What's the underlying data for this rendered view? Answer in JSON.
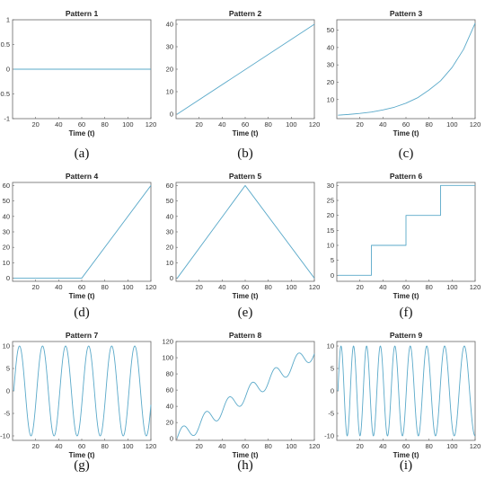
{
  "chart_data": [
    {
      "label": "(a)",
      "type": "line",
      "title": "Pattern 1",
      "xlabel": "Time (t)",
      "xlim": [
        0,
        120
      ],
      "ylim": [
        -1,
        1
      ],
      "xticks": [
        20,
        40,
        60,
        80,
        100,
        120
      ],
      "yticks": [
        -1,
        -0.5,
        0,
        0.5,
        1
      ],
      "series": [
        {
          "x": [
            1,
            120
          ],
          "y": [
            0,
            0
          ]
        }
      ]
    },
    {
      "label": "(b)",
      "type": "line",
      "title": "Pattern 2",
      "xlabel": "Time (t)",
      "xlim": [
        0,
        120
      ],
      "ylim": [
        -2,
        42
      ],
      "xticks": [
        20,
        40,
        60,
        80,
        100,
        120
      ],
      "yticks": [
        0,
        10,
        20,
        30,
        40
      ],
      "series": [
        {
          "x": [
            1,
            120
          ],
          "y": [
            0,
            40
          ]
        }
      ]
    },
    {
      "label": "(c)",
      "type": "line",
      "title": "Pattern 3",
      "xlabel": "Time (t)",
      "xlim": [
        0,
        120
      ],
      "ylim": [
        -1,
        56
      ],
      "xticks": [
        20,
        40,
        60,
        80,
        100,
        120
      ],
      "yticks": [
        10,
        20,
        30,
        40,
        50
      ],
      "series": [
        {
          "x": [
            1,
            10,
            20,
            30,
            40,
            50,
            60,
            70,
            80,
            90,
            100,
            110,
            120
          ],
          "y": [
            1,
            1.4,
            2,
            2.8,
            4,
            5.6,
            7.9,
            11,
            15.5,
            20.8,
            28.5,
            39,
            54
          ]
        }
      ]
    },
    {
      "label": "(d)",
      "type": "line",
      "title": "Pattern 4",
      "xlabel": "Time (t)",
      "xlim": [
        0,
        120
      ],
      "ylim": [
        -2,
        62
      ],
      "xticks": [
        20,
        40,
        60,
        80,
        100,
        120
      ],
      "yticks": [
        0,
        10,
        20,
        30,
        40,
        50,
        60
      ],
      "series": [
        {
          "x": [
            1,
            60,
            120
          ],
          "y": [
            0,
            0,
            60
          ]
        }
      ]
    },
    {
      "label": "(e)",
      "type": "line",
      "title": "Pattern 5",
      "xlabel": "Time (t)",
      "xlim": [
        0,
        120
      ],
      "ylim": [
        -2,
        62
      ],
      "xticks": [
        20,
        40,
        60,
        80,
        100,
        120
      ],
      "yticks": [
        0,
        10,
        20,
        30,
        40,
        50,
        60
      ],
      "series": [
        {
          "x": [
            1,
            60,
            120
          ],
          "y": [
            0,
            60,
            0
          ]
        }
      ]
    },
    {
      "label": "(f)",
      "type": "line",
      "title": "Pattern 6",
      "xlabel": "Time (t)",
      "xlim": [
        0,
        120
      ],
      "ylim": [
        -2,
        31
      ],
      "xticks": [
        20,
        40,
        60,
        80,
        100,
        120
      ],
      "yticks": [
        0,
        5,
        10,
        15,
        20,
        25,
        30
      ],
      "series": [
        {
          "x": [
            1,
            30,
            30,
            60,
            60,
            90,
            90,
            120
          ],
          "y": [
            0,
            0,
            10,
            10,
            20,
            20,
            30,
            30
          ]
        }
      ]
    },
    {
      "label": "(g)",
      "type": "line",
      "title": "Pattern 7",
      "xlabel": "Time (t)",
      "xlim": [
        0,
        120
      ],
      "ylim": [
        -11,
        11
      ],
      "xticks": [
        20,
        40,
        60,
        80,
        100,
        120
      ],
      "yticks": [
        -10,
        -5,
        0,
        5,
        10
      ],
      "series": [
        {
          "formula": "10*sin(2*pi*(t-1)/20)",
          "x_range": [
            1,
            120
          ]
        }
      ]
    },
    {
      "label": "(h)",
      "type": "line",
      "title": "Pattern 8",
      "xlabel": "Time (t)",
      "xlim": [
        0,
        120
      ],
      "ylim": [
        -2,
        120
      ],
      "xticks": [
        20,
        40,
        60,
        80,
        100,
        120
      ],
      "yticks": [
        0,
        20,
        40,
        60,
        80,
        100,
        120
      ],
      "series": [
        {
          "formula": "0.9*t + 10*sin(2*pi*(t-1)/20)",
          "x_range": [
            1,
            120
          ]
        }
      ]
    },
    {
      "label": "(i)",
      "type": "line",
      "title": "Pattern 9",
      "xlabel": "Time (t)",
      "xlim": [
        0,
        120
      ],
      "ylim": [
        -11,
        11
      ],
      "xticks": [
        20,
        40,
        60,
        80,
        100,
        120
      ],
      "yticks": [
        -10,
        -5,
        0,
        5,
        10
      ],
      "series": [
        {
          "formula": "10*sin(chirp)",
          "x_range": [
            1,
            120
          ]
        }
      ]
    }
  ]
}
